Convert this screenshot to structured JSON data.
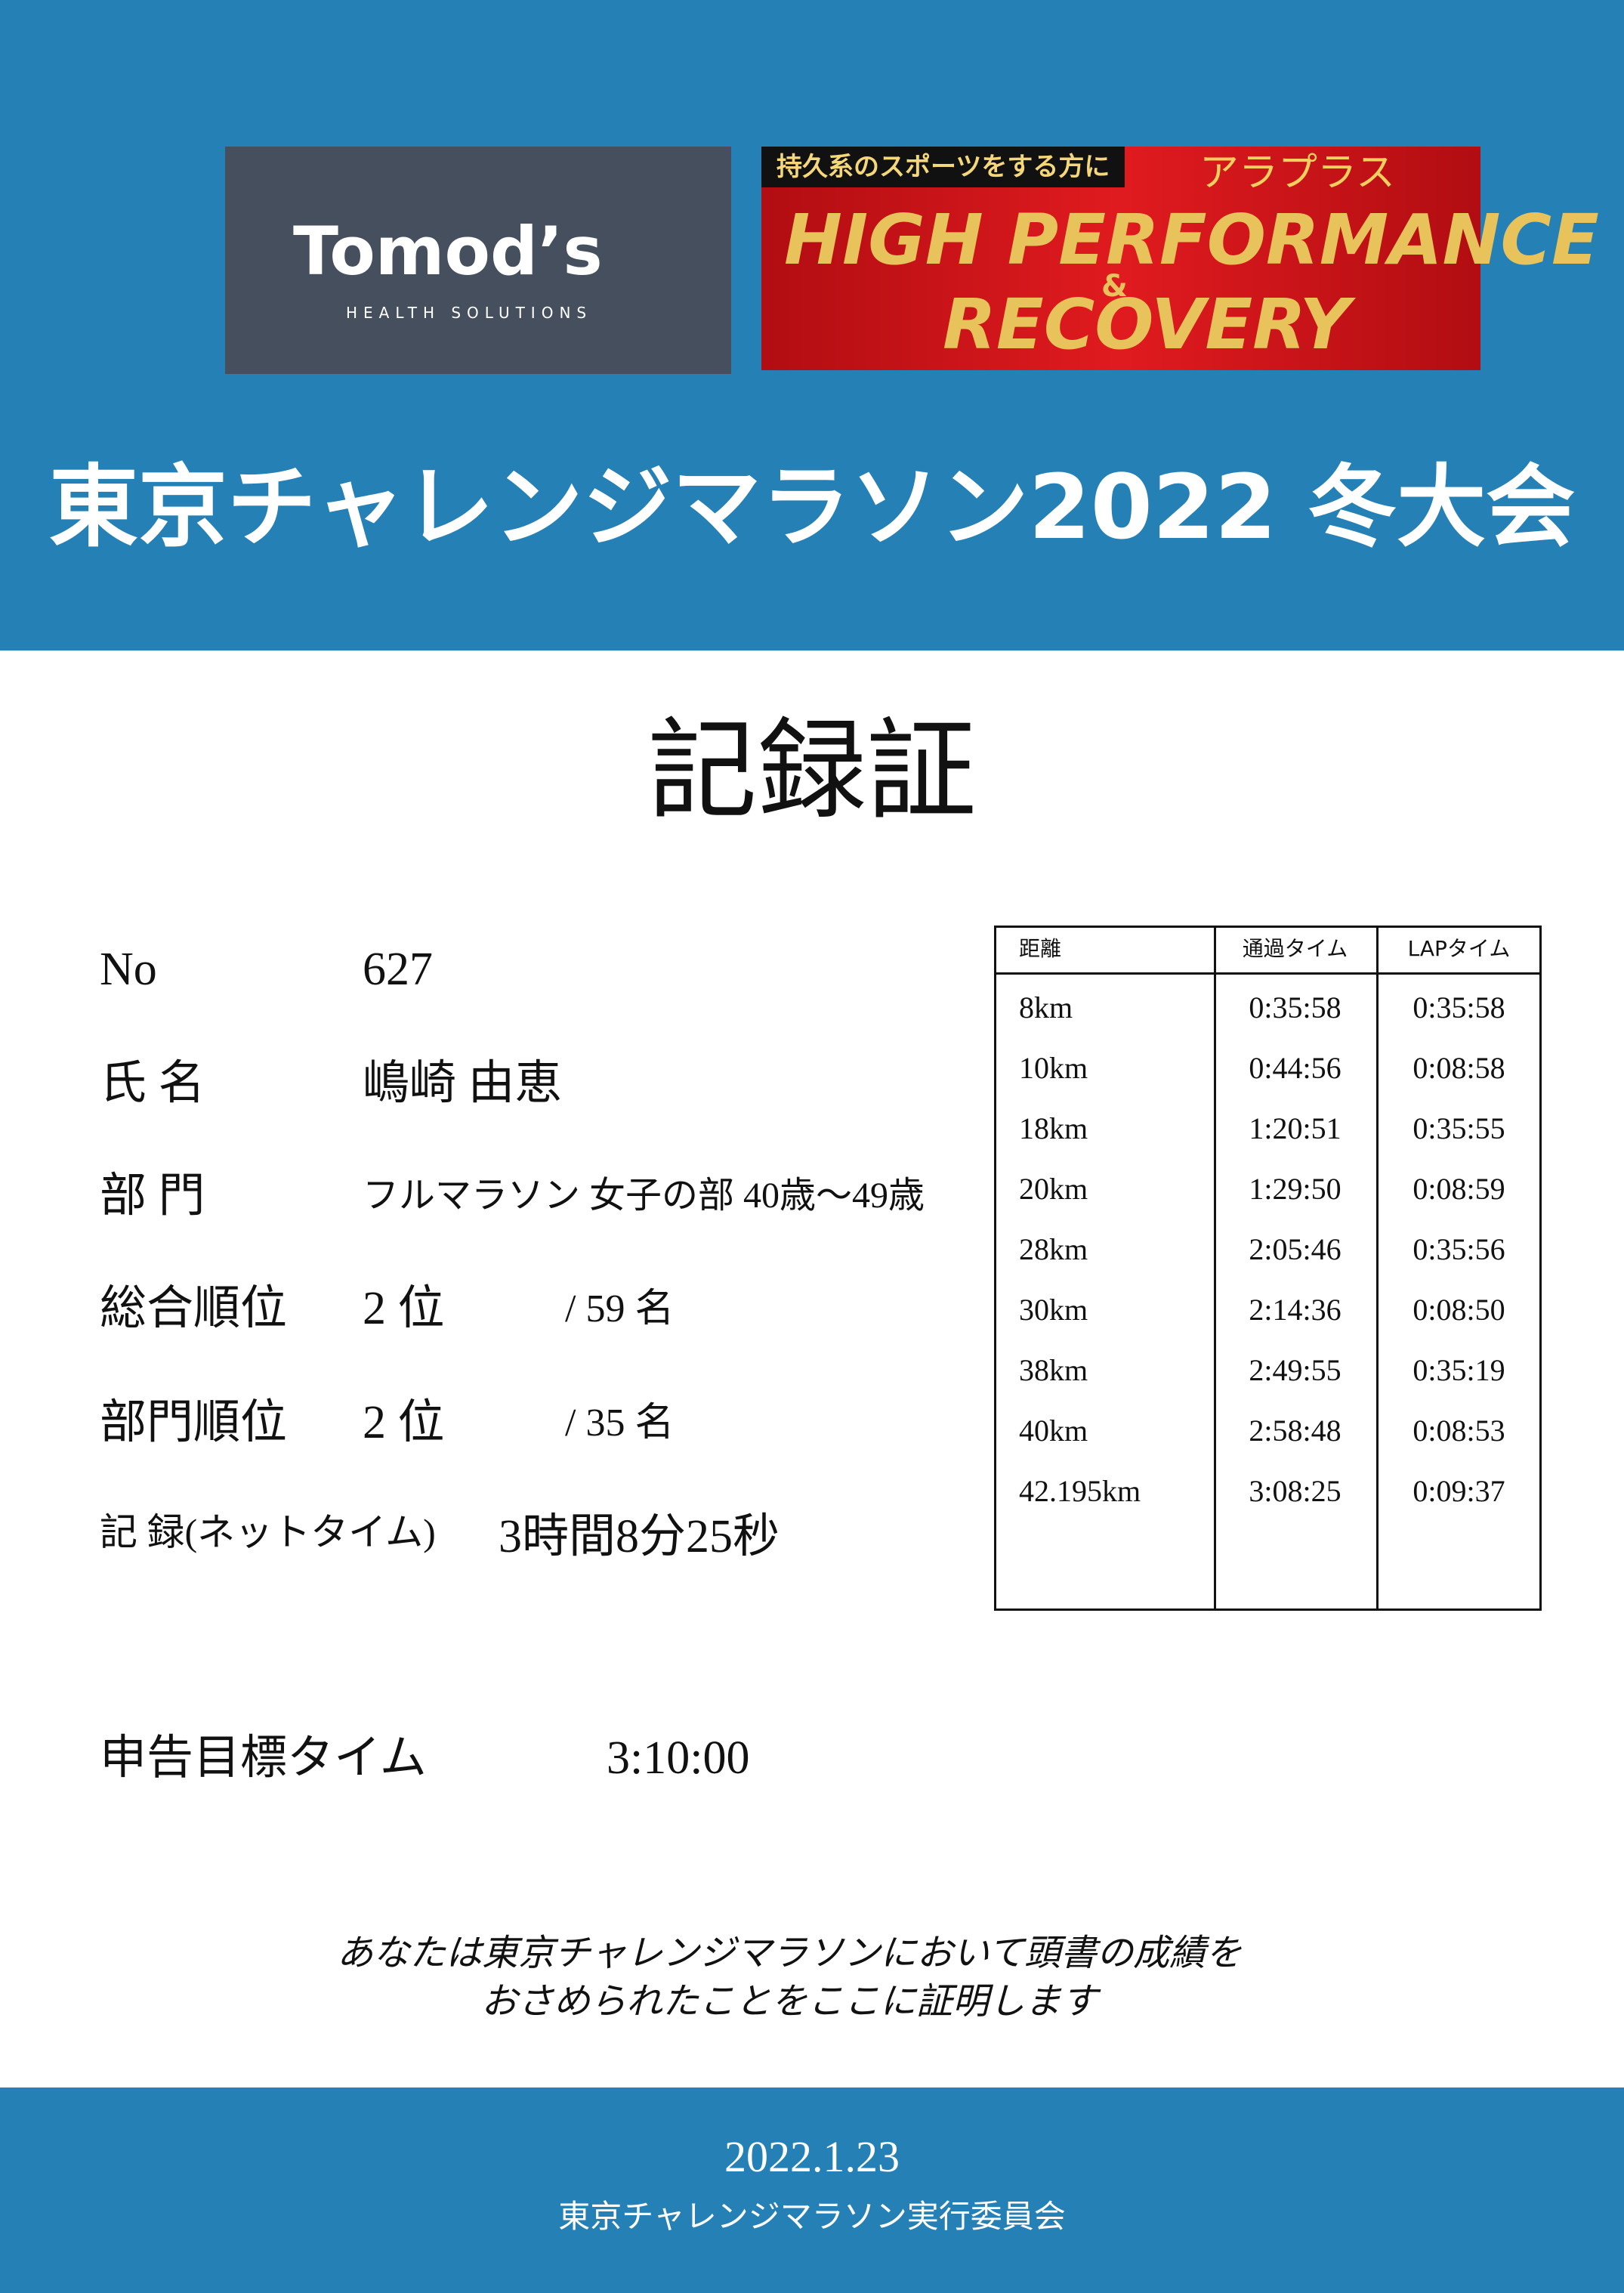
{
  "header": {
    "logo": {
      "brand": "Tomod’s",
      "tagline": "HEALTH SOLUTIONS"
    },
    "banner": {
      "lead": "持久系のスポーツをする方に",
      "product": "アラプラス",
      "line1": "HIGH PERFORMANCE",
      "amp": "&",
      "line2": "RECOVERY"
    },
    "title": "東京チャレンジマラソン2022 冬大会"
  },
  "heading": "記録証",
  "fields": [
    {
      "label": "No",
      "value": "627"
    },
    {
      "label": "氏 名",
      "value": "嶋崎 由恵"
    },
    {
      "label": "部 門",
      "value": "フルマラソン 女子の部 40歳～49歳"
    },
    {
      "label": "総合順位",
      "value": "2 位",
      "total": "/ 59 名"
    },
    {
      "label": "部門順位",
      "value": "2 位",
      "total": "/ 35 名"
    },
    {
      "label": "記 録(ネットタイム)",
      "value": "3時間8分25秒"
    }
  ],
  "table": {
    "headers": [
      "距離",
      "通過タイム",
      "LAPタイム"
    ],
    "rows": [
      [
        "8km",
        "0:35:58",
        "0:35:58"
      ],
      [
        "10km",
        "0:44:56",
        "0:08:58"
      ],
      [
        "18km",
        "1:20:51",
        "0:35:55"
      ],
      [
        "20km",
        "1:29:50",
        "0:08:59"
      ],
      [
        "28km",
        "2:05:46",
        "0:35:56"
      ],
      [
        "30km",
        "2:14:36",
        "0:08:50"
      ],
      [
        "38km",
        "2:49:55",
        "0:35:19"
      ],
      [
        "40km",
        "2:58:48",
        "0:08:53"
      ],
      [
        "42.195km",
        "3:08:25",
        "0:09:37"
      ]
    ]
  },
  "target": {
    "label": "申告目標タイム",
    "value": "3:10:00"
  },
  "statement": [
    "あなたは東京チャレンジマラソンにおいて頭書の成績を",
    "おさめられたことをここに証明します"
  ],
  "footer": {
    "date": "2022.1.23",
    "organizer": "東京チャレンジマラソン実行委員会"
  }
}
